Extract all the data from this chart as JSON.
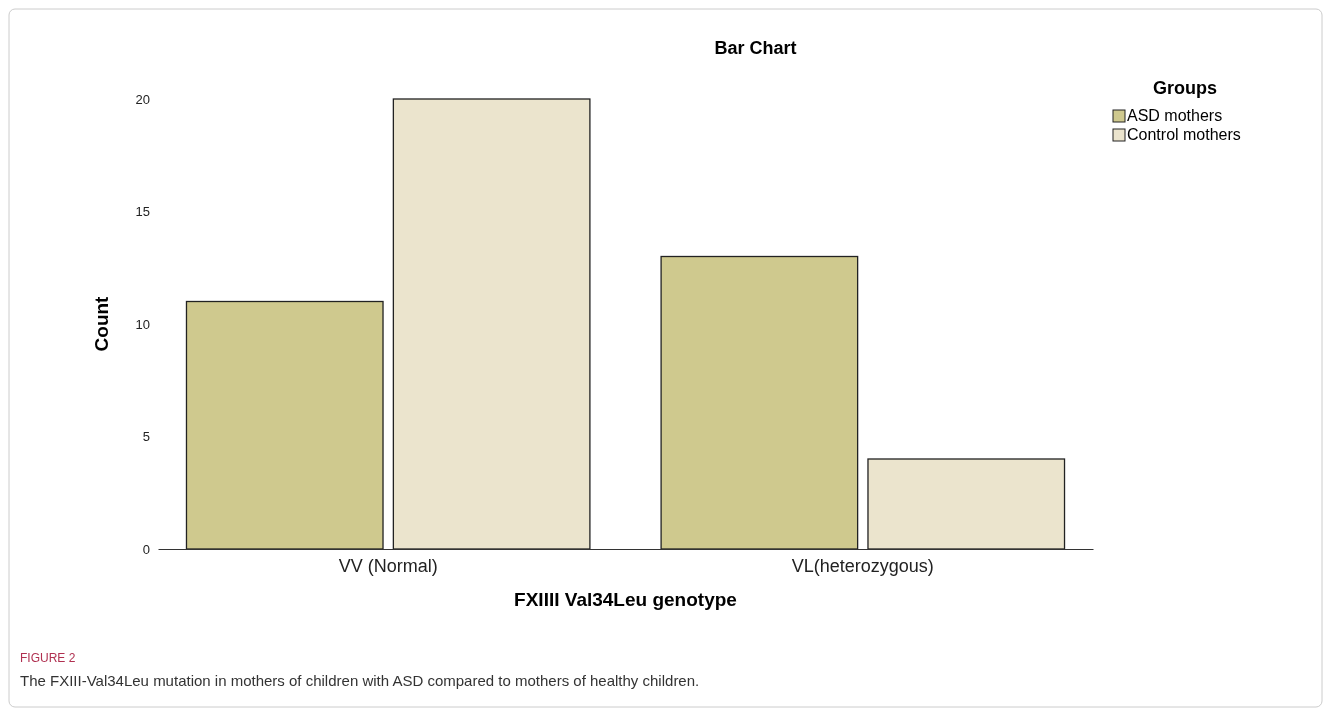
{
  "chart_data": {
    "type": "bar",
    "title": "Bar Chart",
    "xlabel": "FXIIII Val34Leu genotype",
    "ylabel": "Count",
    "legend_title": "Groups",
    "categories": [
      "VV (Normal)",
      "VL(heterozygous)"
    ],
    "series": [
      {
        "name": "ASD mothers",
        "color": "#cfc98e",
        "values": [
          11,
          13
        ]
      },
      {
        "name": "Control mothers",
        "color": "#ebe4cd",
        "values": [
          20,
          4
        ]
      }
    ],
    "ylim": [
      0,
      20
    ],
    "yticks": [
      0,
      5,
      10,
      15,
      20
    ],
    "grid": false,
    "legend": "top right",
    "annotations": [
      "FIGURE 2",
      "The FXIII-Val34Leu mutation in mothers of children with ASD compared to mothers of healthy children."
    ]
  }
}
